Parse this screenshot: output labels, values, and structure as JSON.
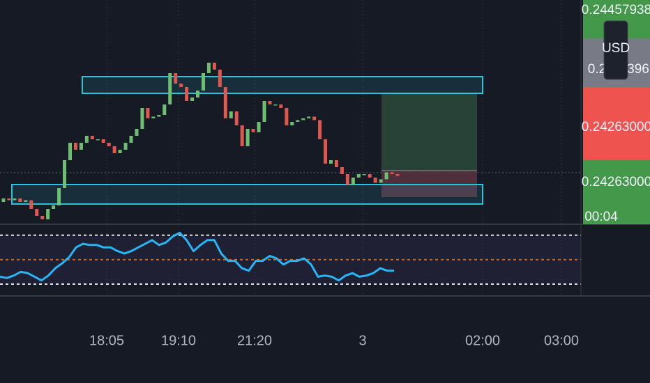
{
  "chart_data": {
    "type": "candlestick",
    "ylim": [
      0.2421,
      0.2447
    ],
    "up_color": "#6fbf73",
    "down_color": "#e0574f",
    "open": [
      0.24238,
      0.24242,
      0.2424,
      0.24242,
      0.24238,
      0.2424,
      0.2423,
      0.24222,
      0.24218,
      0.2423,
      0.24234,
      0.24254,
      0.24286,
      0.24306,
      0.24298,
      0.24306,
      0.24314,
      0.2431,
      0.2431,
      0.24306,
      0.24302,
      0.24294,
      0.24298,
      0.24306,
      0.24314,
      0.24322,
      0.24346,
      0.24334,
      0.24336,
      0.24338,
      0.2435,
      0.24386,
      0.24374,
      0.2437,
      0.24354,
      0.24358,
      0.24366,
      0.24386,
      0.24398,
      0.2439,
      0.2437,
      0.24334,
      0.24342,
      0.24326,
      0.24302,
      0.24322,
      0.24318,
      0.2433,
      0.24354,
      0.2435,
      0.2435,
      0.24346,
      0.24326,
      0.2433,
      0.24332,
      0.24334,
      0.24336,
      0.24332,
      0.2431,
      0.24282,
      0.24286,
      0.24278,
      0.2427,
      0.24258,
      0.24266,
      0.2427,
      0.2427,
      0.24266,
      0.2426,
      0.24264,
      0.24272,
      0.2427
    ],
    "close": [
      0.24242,
      0.2424,
      0.24242,
      0.24238,
      0.2424,
      0.2423,
      0.24222,
      0.24218,
      0.2423,
      0.24234,
      0.24254,
      0.24286,
      0.24306,
      0.24298,
      0.24306,
      0.24314,
      0.2431,
      0.2431,
      0.24306,
      0.24302,
      0.24294,
      0.24298,
      0.24306,
      0.24314,
      0.24322,
      0.24346,
      0.24334,
      0.24336,
      0.24338,
      0.2435,
      0.24386,
      0.24374,
      0.2437,
      0.24354,
      0.24358,
      0.24366,
      0.24386,
      0.24398,
      0.2439,
      0.2437,
      0.24334,
      0.24342,
      0.24326,
      0.24302,
      0.24322,
      0.24318,
      0.2433,
      0.24354,
      0.2435,
      0.2435,
      0.24346,
      0.24326,
      0.2433,
      0.24332,
      0.24334,
      0.24336,
      0.24332,
      0.2431,
      0.24282,
      0.24286,
      0.24278,
      0.2427,
      0.24258,
      0.24266,
      0.2427,
      0.2427,
      0.24266,
      0.2426,
      0.24264,
      0.24272,
      0.2427,
      0.24268
    ],
    "rsi": {
      "color": "#29b6f6",
      "ylim": [
        22,
        79
      ],
      "levels": [
        70,
        50,
        30
      ],
      "level_colors": [
        "#e0e3eb",
        "#d2691e",
        "#e0e3eb"
      ],
      "values": [
        36,
        35,
        37,
        40,
        39,
        36,
        33,
        37,
        43,
        47,
        52,
        60,
        63,
        62,
        62,
        60,
        60,
        57,
        55,
        57,
        60,
        63,
        66,
        62,
        64,
        69,
        72,
        66,
        57,
        62,
        66,
        66,
        55,
        49,
        49,
        43,
        41,
        49,
        49,
        53,
        51,
        46,
        49,
        49,
        51,
        46,
        36,
        37,
        36,
        33,
        37,
        39,
        36,
        37,
        39,
        43,
        41,
        41
      ]
    },
    "time_labels": [
      "18:05",
      "19:10",
      "21:20",
      "3",
      "02:00",
      "03:00"
    ],
    "price_labels": [
      "0.24457938",
      "0.2",
      "396",
      "0.24263000",
      "0.24263000",
      "00:04"
    ],
    "currency": "USD"
  }
}
